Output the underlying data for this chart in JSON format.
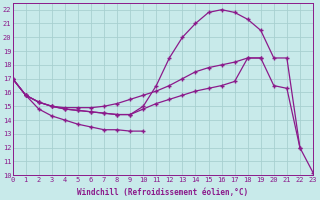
{
  "bg_color": "#c8eaea",
  "grid_color": "#a8d0d0",
  "line_color": "#8b1a8b",
  "xlabel": "Windchill (Refroidissement éolien,°C)",
  "ylim": [
    10,
    22.5
  ],
  "xlim": [
    0,
    23
  ],
  "yticks": [
    10,
    11,
    12,
    13,
    14,
    15,
    16,
    17,
    18,
    19,
    20,
    21,
    22
  ],
  "xticks": [
    0,
    1,
    2,
    3,
    4,
    5,
    6,
    7,
    8,
    9,
    10,
    11,
    12,
    13,
    14,
    15,
    16,
    17,
    18,
    19,
    20,
    21,
    22,
    23
  ],
  "line_upper_x": [
    0,
    1,
    2,
    3,
    4,
    5,
    6,
    7,
    8,
    9,
    10,
    11,
    12,
    13,
    14,
    15,
    16,
    17,
    18,
    19
  ],
  "line_upper_y": [
    17.0,
    15.8,
    15.3,
    15.0,
    14.9,
    14.9,
    14.9,
    15.0,
    15.2,
    15.5,
    15.8,
    16.1,
    16.5,
    17.0,
    17.5,
    17.8,
    18.0,
    18.2,
    18.5,
    18.5
  ],
  "line_arch_x": [
    0,
    1,
    2,
    3,
    4,
    5,
    6,
    7,
    8,
    9,
    10,
    11,
    12,
    13,
    14,
    15,
    16,
    17,
    18,
    19,
    20,
    21,
    22,
    23
  ],
  "line_arch_y": [
    17.0,
    15.8,
    15.3,
    15.0,
    14.8,
    14.7,
    14.6,
    14.5,
    14.4,
    14.4,
    15.0,
    16.5,
    18.5,
    20.0,
    21.0,
    21.8,
    22.0,
    21.8,
    21.3,
    20.5,
    18.5,
    18.5,
    12.0,
    10.2
  ],
  "line_mid_x": [
    0,
    1,
    2,
    3,
    4,
    5,
    6,
    7,
    8,
    9,
    10,
    11,
    12,
    13,
    14,
    15,
    16,
    17,
    18,
    19,
    20,
    21,
    22,
    23
  ],
  "line_mid_y": [
    17.0,
    15.8,
    15.3,
    15.0,
    14.8,
    14.7,
    14.6,
    14.5,
    14.4,
    14.4,
    14.8,
    15.2,
    15.5,
    15.8,
    16.1,
    16.3,
    16.5,
    16.8,
    18.5,
    18.5,
    16.5,
    16.3,
    12.0,
    null
  ],
  "line_lower_x": [
    0,
    1,
    2,
    3,
    4,
    5,
    6,
    7,
    8,
    9,
    10
  ],
  "line_lower_y": [
    17.0,
    15.8,
    14.8,
    14.3,
    14.0,
    13.7,
    13.5,
    13.3,
    13.3,
    13.2,
    13.2
  ]
}
